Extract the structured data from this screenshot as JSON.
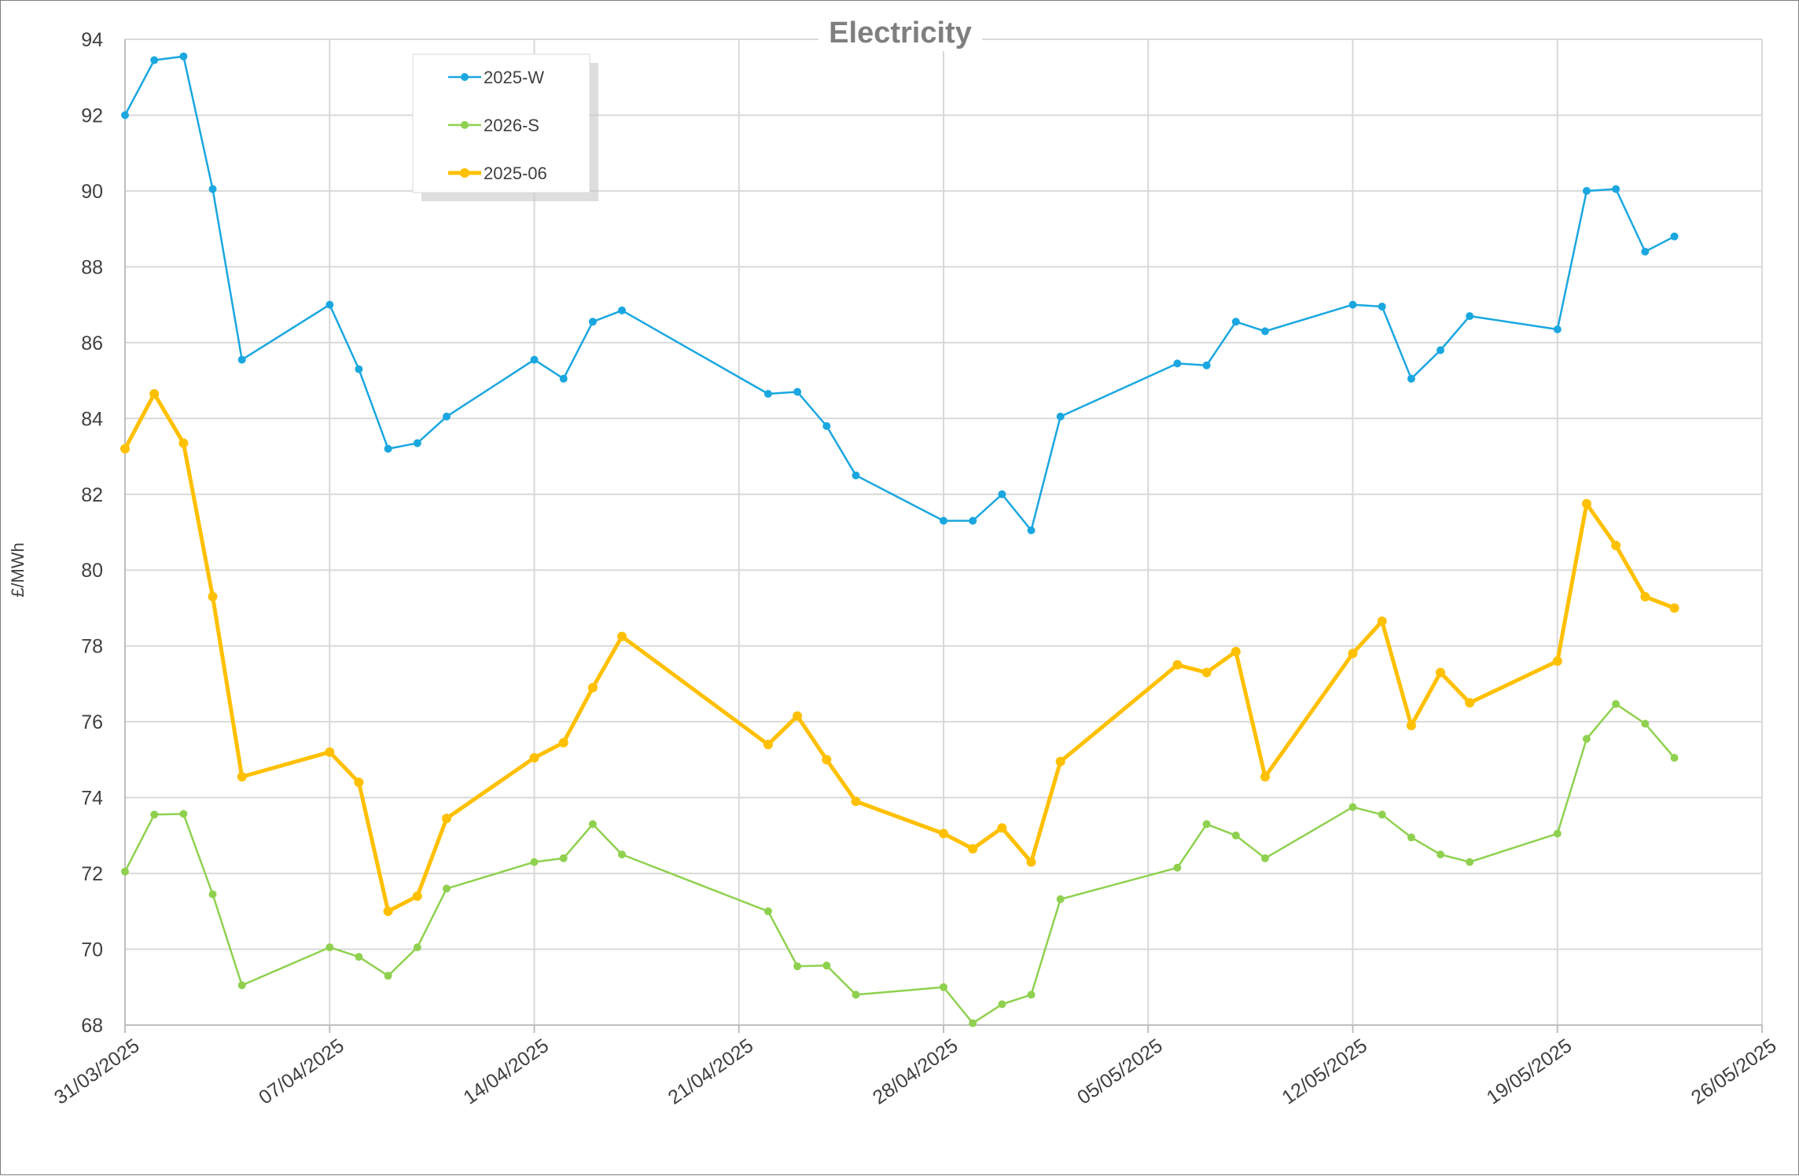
{
  "chart_data": {
    "type": "line",
    "title": "Electricity",
    "ylabel": "£/MWh",
    "xlabel": "",
    "ylim": [
      68,
      94
    ],
    "yticks": [
      68,
      70,
      72,
      74,
      76,
      78,
      80,
      82,
      84,
      86,
      88,
      90,
      92,
      94
    ],
    "xlim": [
      "2025-03-31",
      "2025-05-26"
    ],
    "xticks": [
      "31/03/2025",
      "07/04/2025",
      "14/04/2025",
      "21/04/2025",
      "28/04/2025",
      "05/05/2025",
      "12/05/2025",
      "19/05/2025",
      "26/05/2025"
    ],
    "grid": true,
    "legend_position": "top-left",
    "x": [
      "2025-03-31",
      "2025-04-01",
      "2025-04-02",
      "2025-04-03",
      "2025-04-04",
      "2025-04-07",
      "2025-04-08",
      "2025-04-09",
      "2025-04-10",
      "2025-04-11",
      "2025-04-14",
      "2025-04-15",
      "2025-04-16",
      "2025-04-17",
      "2025-04-22",
      "2025-04-23",
      "2025-04-24",
      "2025-04-25",
      "2025-04-28",
      "2025-04-29",
      "2025-04-30",
      "2025-05-01",
      "2025-05-02",
      "2025-05-06",
      "2025-05-07",
      "2025-05-08",
      "2025-05-09",
      "2025-05-12",
      "2025-05-13",
      "2025-05-14",
      "2025-05-15",
      "2025-05-16",
      "2025-05-19",
      "2025-05-20",
      "2025-05-21",
      "2025-05-22",
      "2025-05-23"
    ],
    "series": [
      {
        "name": "2025-W",
        "color": "#1aa7e0",
        "values": [
          92.0,
          93.45,
          93.55,
          90.05,
          85.55,
          87.0,
          85.3,
          83.2,
          83.35,
          84.05,
          85.55,
          85.05,
          86.55,
          86.85,
          84.65,
          84.7,
          83.8,
          82.5,
          81.3,
          81.3,
          82.0,
          81.05,
          84.05,
          85.45,
          85.4,
          86.55,
          86.3,
          87.0,
          86.95,
          85.05,
          85.8,
          86.7,
          86.35,
          90.0,
          90.05,
          88.4,
          88.8
        ]
      },
      {
        "name": "2026-S",
        "color": "#8fd14f",
        "values": [
          72.05,
          73.55,
          73.57,
          71.45,
          69.05,
          70.05,
          69.8,
          69.3,
          70.05,
          71.6,
          72.3,
          72.4,
          73.3,
          72.5,
          71.0,
          69.55,
          69.57,
          68.8,
          69.0,
          68.05,
          68.55,
          68.8,
          71.32,
          72.15,
          73.3,
          73.0,
          72.4,
          73.75,
          73.55,
          72.95,
          72.5,
          72.3,
          73.05,
          75.55,
          76.47,
          75.95,
          75.05
        ]
      },
      {
        "name": "2025-06",
        "color": "#ffc000",
        "values": [
          83.2,
          84.65,
          83.35,
          79.3,
          74.55,
          75.2,
          74.4,
          71.0,
          71.4,
          73.45,
          75.05,
          75.45,
          76.9,
          78.25,
          75.4,
          76.15,
          75.0,
          73.9,
          73.05,
          72.65,
          73.2,
          72.3,
          74.95,
          77.5,
          77.3,
          77.85,
          74.55,
          77.8,
          78.65,
          75.9,
          77.3,
          76.5,
          77.6,
          81.75,
          80.65,
          79.3,
          79.0
        ]
      }
    ]
  }
}
